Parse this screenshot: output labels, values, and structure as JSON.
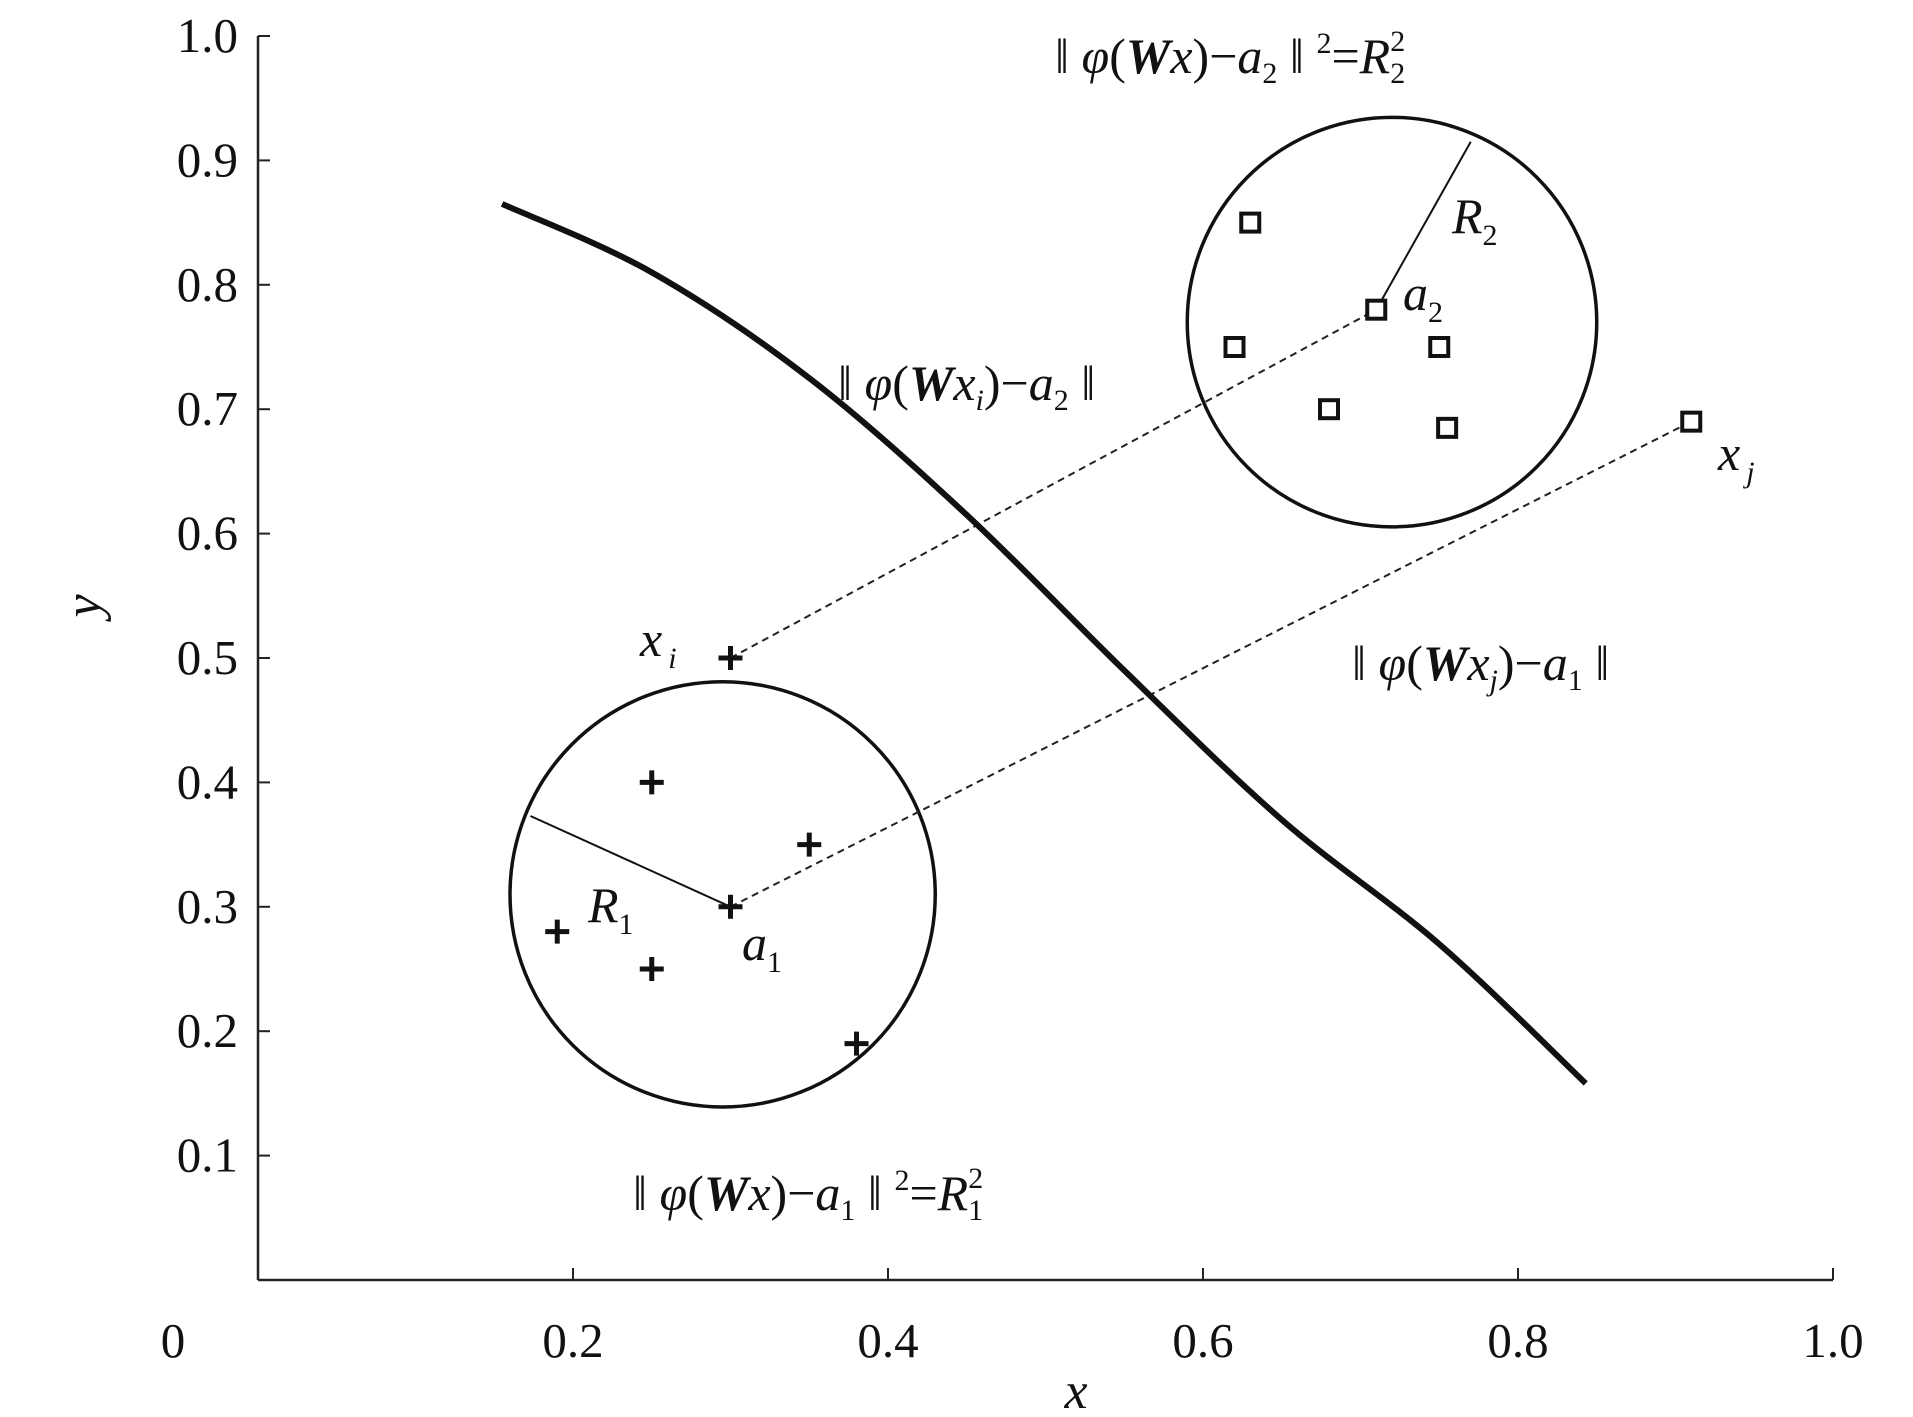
{
  "chart_data": {
    "type": "scatter",
    "xlabel": "x",
    "ylabel": "y",
    "xlim": [
      0,
      1.0
    ],
    "ylim": [
      0,
      1.0
    ],
    "x_ticks": [
      "0",
      "0.2",
      "0.4",
      "0.6",
      "0.8",
      "1.0"
    ],
    "y_ticks": [
      "0.1",
      "0.2",
      "0.3",
      "0.4",
      "0.5",
      "0.6",
      "0.7",
      "0.8",
      "0.9",
      "1.0"
    ],
    "series": [
      {
        "marker": "plus",
        "points": [
          [
            0.25,
            0.4
          ],
          [
            0.35,
            0.35
          ],
          [
            0.19,
            0.28
          ],
          [
            0.3,
            0.3
          ],
          [
            0.25,
            0.25
          ],
          [
            0.38,
            0.19
          ],
          [
            0.3,
            0.5
          ]
        ]
      },
      {
        "marker": "square",
        "points": [
          [
            0.63,
            0.85
          ],
          [
            0.71,
            0.78
          ],
          [
            0.62,
            0.75
          ],
          [
            0.75,
            0.75
          ],
          [
            0.68,
            0.7
          ],
          [
            0.755,
            0.685
          ],
          [
            0.91,
            0.69
          ]
        ]
      }
    ],
    "boundary_curve": [
      [
        0.155,
        0.865
      ],
      [
        0.25,
        0.81
      ],
      [
        0.35,
        0.725
      ],
      [
        0.45,
        0.615
      ],
      [
        0.55,
        0.49
      ],
      [
        0.65,
        0.37
      ],
      [
        0.75,
        0.27
      ],
      [
        0.843,
        0.158
      ]
    ],
    "circles": [
      {
        "center": [
          0.295,
          0.31
        ],
        "radius_x": 0.135
      },
      {
        "center": [
          0.72,
          0.77
        ],
        "radius_x": 0.13
      }
    ],
    "radius_lines": [
      {
        "from": [
          0.3,
          0.3
        ],
        "to": [
          0.173,
          0.373
        ],
        "label": "R1"
      },
      {
        "from": [
          0.71,
          0.78
        ],
        "to": [
          0.77,
          0.915
        ],
        "label": "R2"
      }
    ],
    "dashed_lines": [
      {
        "from": [
          0.3,
          0.5
        ],
        "to": [
          0.71,
          0.78
        ]
      },
      {
        "from": [
          0.3,
          0.3
        ],
        "to": [
          0.91,
          0.69
        ]
      }
    ],
    "annotations": {
      "top_eq": {
        "open": "‖ ",
        "phi": "φ",
        "lp": "(",
        "W": "W",
        "x": "x",
        "rp": ")",
        "minus": "−",
        "a": "a",
        "a_sub": "2",
        "close": " ‖ ",
        "exp": "2",
        "eq": "=",
        "R": "R",
        "R_sub": "2",
        "R_sup": "2"
      },
      "bottom_eq": {
        "open": "‖ ",
        "phi": "φ",
        "lp": "(",
        "W": "W",
        "x": "x",
        "rp": ")",
        "minus": "−",
        "a": "a",
        "a_sub": "1",
        "close": " ‖ ",
        "exp": "2",
        "eq": "=",
        "R": "R",
        "R_sub": "1",
        "R_sup": "2"
      },
      "mid_left": {
        "open": "‖ ",
        "phi": "φ",
        "lp": "(",
        "W": "W",
        "x": "x",
        "x_sub": "i",
        "rp": ")",
        "minus": "−",
        "a": "a",
        "a_sub": "2",
        "close": " ‖"
      },
      "mid_right": {
        "open": "‖ ",
        "phi": "φ",
        "lp": "(",
        "W": "W",
        "x": "x",
        "x_sub": "j",
        "rp": ")",
        "minus": "−",
        "a": "a",
        "a_sub": "1",
        "close": " ‖"
      },
      "xi": {
        "base": "x",
        "sub": "i"
      },
      "xj": {
        "base": "x",
        "sub": "j"
      },
      "a1": {
        "base": "a",
        "sub": "1"
      },
      "a2": {
        "base": "a",
        "sub": "2"
      },
      "R1": {
        "base": "R",
        "sub": "1"
      },
      "R2": {
        "base": "R",
        "sub": "2"
      }
    }
  }
}
